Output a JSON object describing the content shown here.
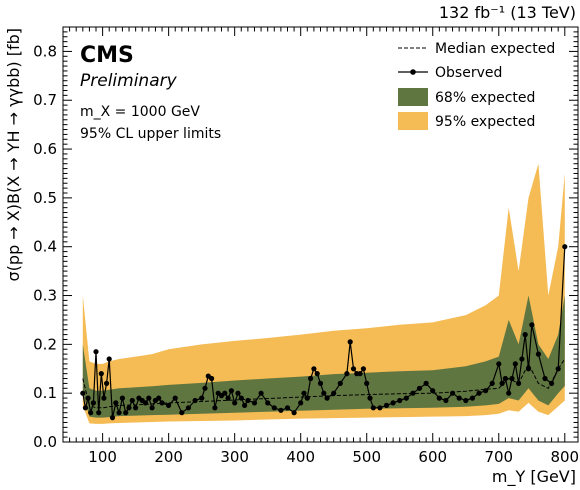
{
  "header": {
    "lumi": "132 fb⁻¹ (13 TeV)"
  },
  "cms": {
    "label": "CMS",
    "status": "Preliminary",
    "line1": "m_X = 1000 GeV",
    "line2": "95% CL upper limits"
  },
  "colors": {
    "band68": "#607641",
    "band95": "#f5bb54",
    "line": "#000000"
  },
  "chart_data": {
    "type": "line",
    "title": "",
    "xlabel": "m_Y [GeV]",
    "ylabel": "σ(pp → X)B(X → YH → γγbb) [fb]",
    "xlim": [
      40,
      820
    ],
    "ylim": [
      0,
      0.85
    ],
    "xticks": [
      100,
      200,
      300,
      400,
      500,
      600,
      700,
      800
    ],
    "yticks": [
      0.0,
      0.1,
      0.2,
      0.3,
      0.4,
      0.5,
      0.6,
      0.7,
      0.8
    ],
    "legend_position": "top-right",
    "legend": [
      "Median expected",
      "Observed",
      "68% expected",
      "95% expected"
    ],
    "expected": {
      "x": [
        70,
        80,
        90,
        100,
        110,
        125,
        150,
        175,
        200,
        250,
        300,
        350,
        400,
        450,
        500,
        550,
        600,
        650,
        680,
        700,
        715,
        730,
        745,
        760,
        775,
        790,
        800
      ],
      "median": [
        0.13,
        0.075,
        0.07,
        0.07,
        0.072,
        0.075,
        0.076,
        0.078,
        0.08,
        0.083,
        0.086,
        0.089,
        0.092,
        0.095,
        0.097,
        0.099,
        0.1,
        0.104,
        0.108,
        0.11,
        0.13,
        0.12,
        0.16,
        0.12,
        0.11,
        0.15,
        0.17
      ],
      "lo68": [
        0.1,
        0.052,
        0.05,
        0.05,
        0.051,
        0.053,
        0.054,
        0.055,
        0.056,
        0.058,
        0.06,
        0.062,
        0.064,
        0.066,
        0.068,
        0.069,
        0.07,
        0.072,
        0.075,
        0.078,
        0.09,
        0.085,
        0.11,
        0.085,
        0.075,
        0.1,
        0.115
      ],
      "hi68": [
        0.2,
        0.11,
        0.105,
        0.105,
        0.107,
        0.11,
        0.112,
        0.114,
        0.117,
        0.121,
        0.126,
        0.13,
        0.134,
        0.139,
        0.142,
        0.145,
        0.147,
        0.155,
        0.165,
        0.175,
        0.25,
        0.2,
        0.3,
        0.2,
        0.17,
        0.22,
        0.3
      ],
      "lo95": [
        0.075,
        0.038,
        0.037,
        0.037,
        0.038,
        0.039,
        0.04,
        0.041,
        0.042,
        0.043,
        0.044,
        0.046,
        0.048,
        0.049,
        0.05,
        0.051,
        0.052,
        0.053,
        0.055,
        0.058,
        0.065,
        0.062,
        0.08,
        0.062,
        0.055,
        0.073,
        0.085
      ],
      "hi95": [
        0.3,
        0.165,
        0.16,
        0.16,
        0.165,
        0.17,
        0.175,
        0.18,
        0.19,
        0.2,
        0.207,
        0.213,
        0.22,
        0.228,
        0.233,
        0.24,
        0.245,
        0.26,
        0.28,
        0.3,
        0.48,
        0.35,
        0.5,
        0.57,
        0.3,
        0.4,
        0.55
      ]
    },
    "observed": {
      "x": [
        70,
        74,
        78,
        82,
        86,
        90,
        94,
        98,
        102,
        106,
        110,
        115,
        120,
        125,
        130,
        135,
        140,
        145,
        150,
        155,
        160,
        165,
        170,
        175,
        180,
        185,
        190,
        200,
        210,
        220,
        230,
        240,
        250,
        255,
        260,
        265,
        270,
        275,
        280,
        285,
        290,
        295,
        300,
        305,
        310,
        315,
        320,
        330,
        340,
        350,
        360,
        370,
        380,
        390,
        400,
        405,
        410,
        415,
        420,
        425,
        430,
        435,
        440,
        450,
        460,
        470,
        475,
        480,
        485,
        490,
        495,
        500,
        505,
        510,
        520,
        530,
        540,
        550,
        560,
        570,
        580,
        590,
        600,
        610,
        620,
        630,
        640,
        650,
        660,
        670,
        680,
        690,
        700,
        705,
        710,
        715,
        720,
        725,
        730,
        735,
        740,
        745,
        750,
        760,
        770,
        780,
        790,
        800
      ],
      "y": [
        0.1,
        0.07,
        0.09,
        0.06,
        0.08,
        0.185,
        0.06,
        0.14,
        0.09,
        0.12,
        0.17,
        0.05,
        0.08,
        0.06,
        0.09,
        0.06,
        0.07,
        0.085,
        0.07,
        0.09,
        0.085,
        0.08,
        0.09,
        0.07,
        0.085,
        0.09,
        0.08,
        0.075,
        0.09,
        0.06,
        0.07,
        0.085,
        0.09,
        0.11,
        0.135,
        0.13,
        0.07,
        0.1,
        0.095,
        0.1,
        0.09,
        0.105,
        0.08,
        0.1,
        0.09,
        0.075,
        0.085,
        0.08,
        0.1,
        0.08,
        0.07,
        0.065,
        0.07,
        0.06,
        0.08,
        0.1,
        0.09,
        0.13,
        0.15,
        0.14,
        0.12,
        0.1,
        0.09,
        0.1,
        0.12,
        0.14,
        0.205,
        0.15,
        0.14,
        0.14,
        0.15,
        0.12,
        0.09,
        0.07,
        0.07,
        0.075,
        0.08,
        0.085,
        0.09,
        0.1,
        0.11,
        0.12,
        0.105,
        0.09,
        0.085,
        0.1,
        0.09,
        0.085,
        0.09,
        0.1,
        0.105,
        0.12,
        0.16,
        0.12,
        0.13,
        0.1,
        0.13,
        0.16,
        0.12,
        0.17,
        0.22,
        0.15,
        0.24,
        0.18,
        0.13,
        0.12,
        0.15,
        0.4
      ]
    }
  }
}
